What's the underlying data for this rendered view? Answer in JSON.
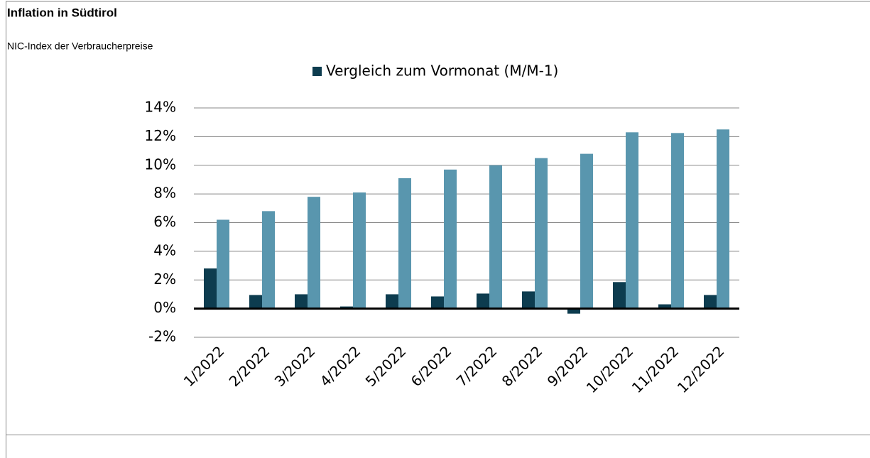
{
  "chart_data": {
    "type": "bar",
    "title": "Inflation in Südtirol",
    "subtitle": "NIC-Index der Verbraucherpreise",
    "categories": [
      "1/2022",
      "2/2022",
      "3/2022",
      "4/2022",
      "5/2022",
      "6/2022",
      "7/2022",
      "8/2022",
      "9/2022",
      "10/2022",
      "11/2022",
      "12/2022"
    ],
    "series": [
      {
        "name": "Vergleich zum Vormonat (M/M-1)",
        "color": "#0d3c4f",
        "values": [
          2.8,
          0.95,
          1.0,
          0.15,
          1.0,
          0.85,
          1.05,
          1.2,
          -0.35,
          1.85,
          0.3,
          0.95
        ]
      },
      {
        "color": "#5996ae",
        "values": [
          6.2,
          6.8,
          7.8,
          8.1,
          9.1,
          9.7,
          10.0,
          10.5,
          10.8,
          12.3,
          12.25,
          12.5
        ]
      }
    ],
    "ylim": [
      -2,
      14
    ],
    "yticks": [
      {
        "value": -2,
        "label": "-2%"
      },
      {
        "value": 0,
        "label": "0%"
      },
      {
        "value": 2,
        "label": "2%"
      },
      {
        "value": 4,
        "label": "4%"
      },
      {
        "value": 6,
        "label": "6%"
      },
      {
        "value": 8,
        "label": "8%"
      },
      {
        "value": 10,
        "label": "10%"
      },
      {
        "value": 12,
        "label": "12%"
      },
      {
        "value": 14,
        "label": "14%"
      }
    ],
    "grid": true,
    "legend": "top"
  }
}
